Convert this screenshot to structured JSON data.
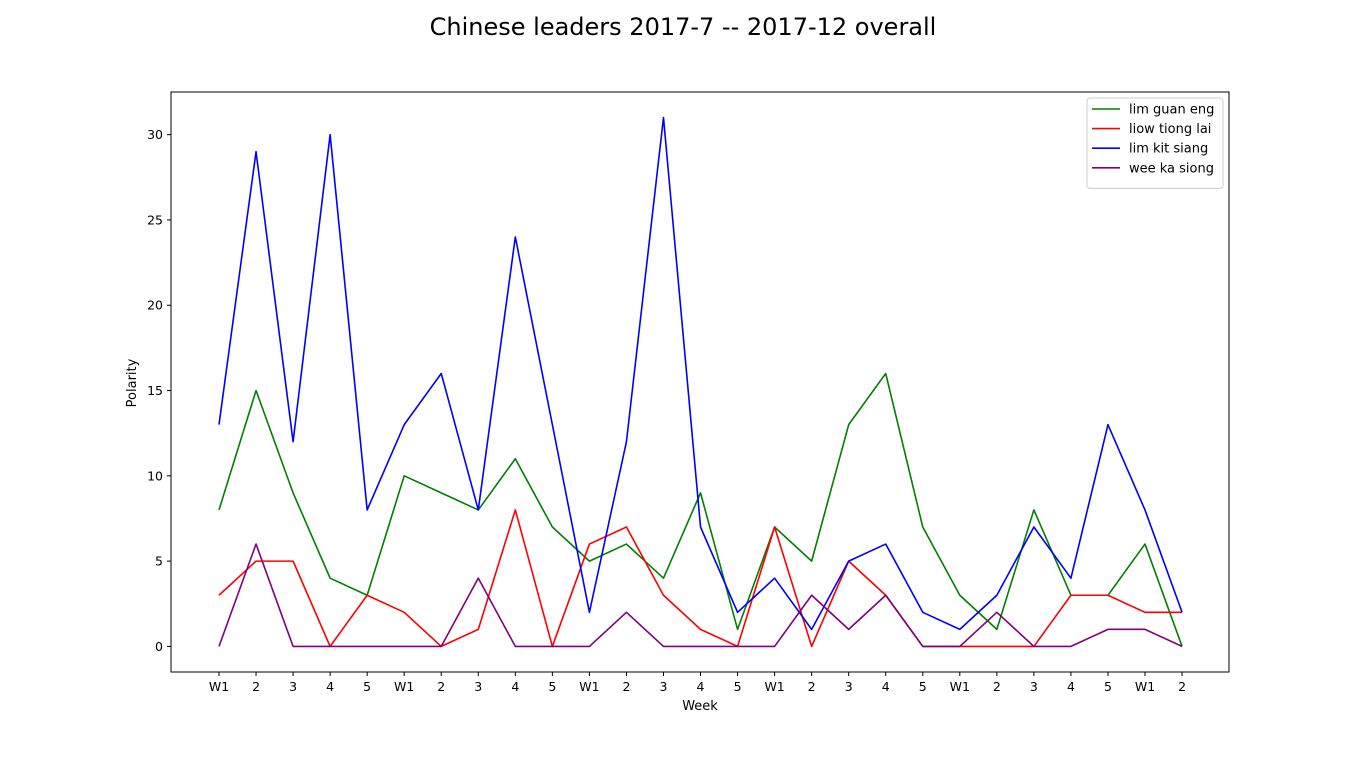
{
  "chart_data": {
    "type": "line",
    "title": "Chinese leaders 2017-7 -- 2017-12 overall",
    "xlabel": "Week",
    "ylabel": "Polarity",
    "categories": [
      "W1",
      "2",
      "3",
      "4",
      "5",
      "W1",
      "2",
      "3",
      "4",
      "5",
      "W1",
      "2",
      "3",
      "4",
      "5",
      "W1",
      "2",
      "3",
      "4",
      "5",
      "W1",
      "2",
      "3",
      "4",
      "5",
      "W1",
      "2"
    ],
    "ylim": [
      -1.5,
      32.5
    ],
    "yticks": [
      0,
      5,
      10,
      15,
      20,
      25,
      30
    ],
    "grid": false,
    "legend_position": "top-right",
    "series": [
      {
        "name": "lim guan eng",
        "color": "#008000",
        "values": [
          8,
          15,
          9,
          4,
          3,
          10,
          9,
          8,
          11,
          7,
          5,
          6,
          4,
          9,
          1,
          7,
          5,
          13,
          16,
          7,
          3,
          1,
          8,
          3,
          3,
          6,
          0
        ]
      },
      {
        "name": "liow tiong lai",
        "color": "#ff0000",
        "values": [
          3,
          5,
          5,
          0,
          3,
          2,
          0,
          1,
          8,
          0,
          6,
          7,
          3,
          1,
          0,
          7,
          0,
          5,
          3,
          0,
          0,
          0,
          0,
          3,
          3,
          2,
          2
        ]
      },
      {
        "name": "lim kit siang",
        "color": "#0000ff",
        "values": [
          13,
          29,
          12,
          30,
          8,
          13,
          16,
          8,
          24,
          13,
          2,
          12,
          31,
          7,
          2,
          4,
          1,
          5,
          6,
          2,
          1,
          3,
          7,
          4,
          13,
          8,
          2
        ]
      },
      {
        "name": "wee ka siong",
        "color": "#800080",
        "values": [
          0,
          6,
          0,
          0,
          0,
          0,
          0,
          4,
          0,
          0,
          0,
          2,
          0,
          0,
          0,
          0,
          3,
          1,
          3,
          0,
          0,
          2,
          0,
          0,
          1,
          1,
          0
        ]
      }
    ]
  }
}
